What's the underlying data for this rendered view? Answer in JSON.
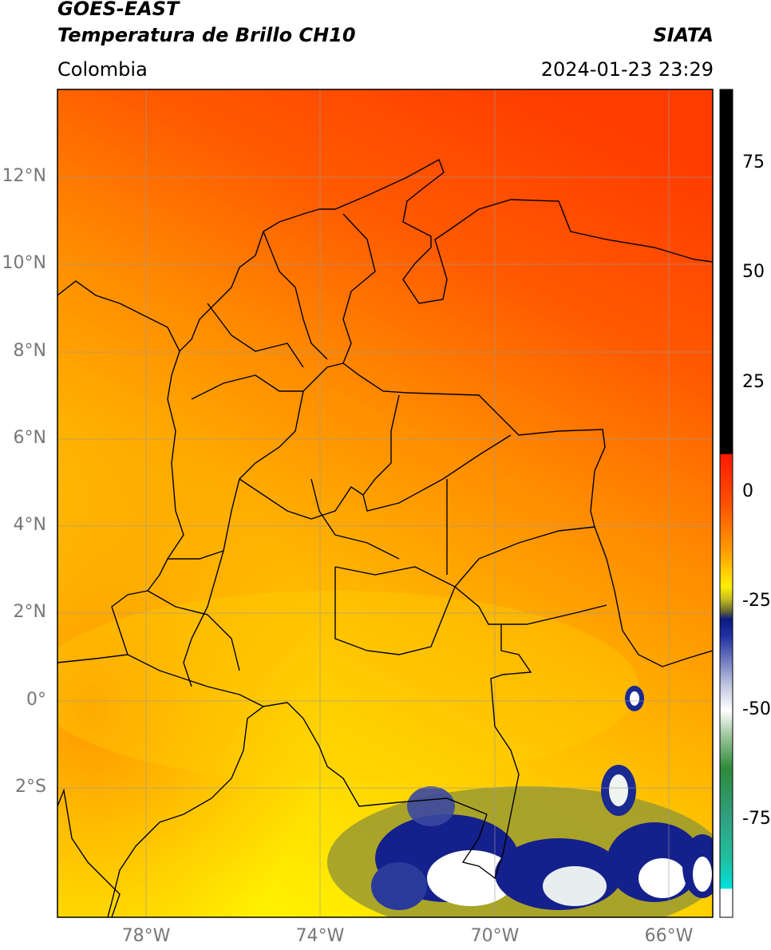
{
  "header": {
    "satellite": "GOES-EAST",
    "product": "Temperatura de Brillo CH10",
    "org": "SIATA",
    "region": "Colombia",
    "datetime": "2024-01-23 23:29"
  },
  "axes": {
    "lat_labels": [
      "12°N",
      "10°N",
      "8°N",
      "6°N",
      "4°N",
      "2°N",
      "0°",
      "2°S"
    ],
    "lon_labels": [
      "78°W",
      "74°W",
      "70°W",
      "66°W"
    ]
  },
  "colorbar": {
    "ticks": [
      "75",
      "50",
      "25",
      "0",
      "-25",
      "-50",
      "-75"
    ],
    "colors": {
      "black": "#000000",
      "red": "#ff1a00",
      "orange": "#ff8c00",
      "yellow": "#ffee00",
      "olive": "#8a8a2a",
      "navy": "#0a1a80",
      "white": "#ffffff",
      "green": "#2e8a3a",
      "teal": "#20c0a0",
      "cyan": "#00e0e0"
    }
  },
  "map_colors": {
    "hot": "#ff3c00",
    "warm": "#ff7a00",
    "mid": "#ffa800",
    "cool": "#ffd400",
    "cold": "#ffee00",
    "storm_navy": "#14208c",
    "storm_olive": "#8a8a2a"
  }
}
